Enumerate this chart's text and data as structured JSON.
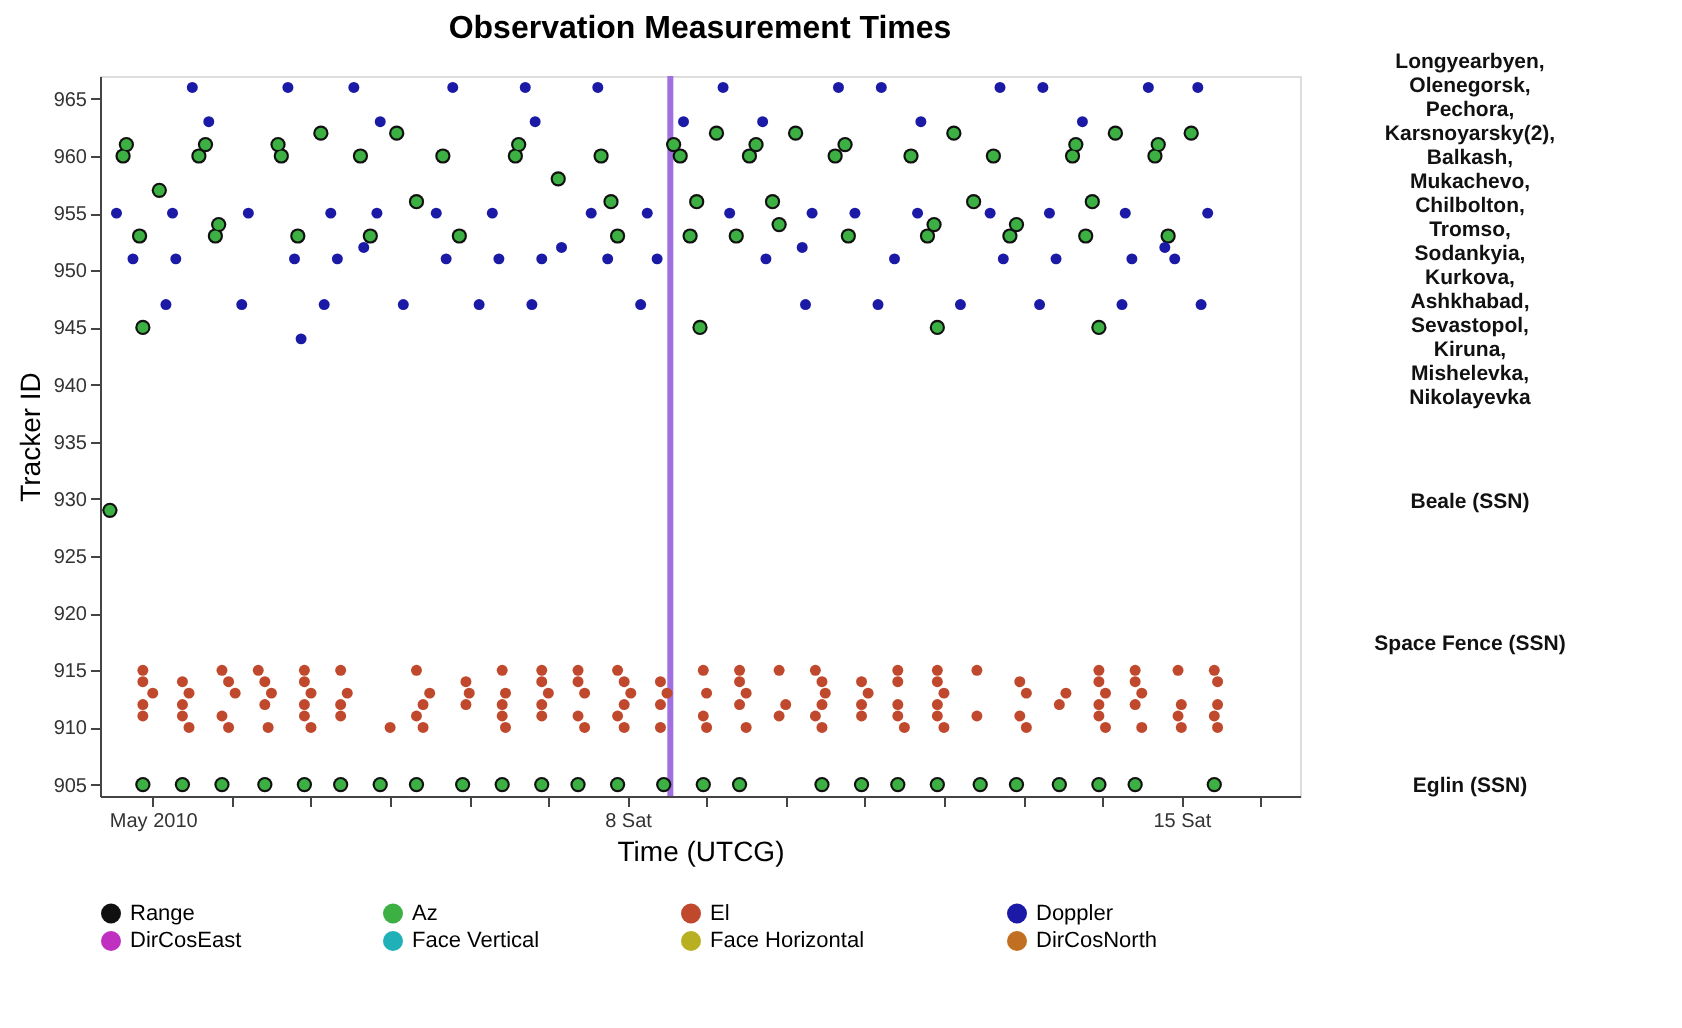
{
  "chart_data": {
    "type": "scatter",
    "title": "Observation Measurement Times",
    "xlabel": "Time (UTCG)",
    "ylabel": "Tracker ID",
    "xlim": [
      "2010-05-01T08:00",
      "2010-05-16T12:00"
    ],
    "xticks": [
      {
        "value": "2010-05-02",
        "label": "May 2010"
      },
      {
        "value": "2010-05-03",
        "label": null
      },
      {
        "value": "2010-05-04",
        "label": null
      },
      {
        "value": "2010-05-05",
        "label": null
      },
      {
        "value": "2010-05-06",
        "label": null
      },
      {
        "value": "2010-05-07",
        "label": null
      },
      {
        "value": "2010-05-08",
        "label": "8 Sat"
      },
      {
        "value": "2010-05-09",
        "label": null
      },
      {
        "value": "2010-05-10",
        "label": null
      },
      {
        "value": "2010-05-11",
        "label": null
      },
      {
        "value": "2010-05-12",
        "label": null
      },
      {
        "value": "2010-05-13",
        "label": null
      },
      {
        "value": "2010-05-14",
        "label": null
      },
      {
        "value": "2010-05-15",
        "label": "15 Sat"
      },
      {
        "value": "2010-05-16",
        "label": null
      }
    ],
    "ylim": [
      904,
      967
    ],
    "yticks": [
      905,
      910,
      915,
      920,
      925,
      930,
      935,
      940,
      945,
      950,
      955,
      960,
      965
    ],
    "grid": false,
    "legend": "bottom",
    "marker": "circle",
    "ref_lines": [
      {
        "axis": "x",
        "value": "2010-05-08T13:00",
        "color": "#a070e0"
      }
    ],
    "annotations": [
      "Longyearbyen, Olenegorsk, Pechora, Karsnoyarsky(2), Balkash, Mukachevo, Chilbolton, Tromso, Sodankyia, Kurkova, Ashkhabad, Sevastopol, Kiruna, Mishelevka, Nikolayevka",
      "Beale (SSN)",
      "Space Fence (SSN)",
      "Eglin (SSN)"
    ],
    "series": [
      {
        "name": "Range",
        "color": "#101010",
        "x": [
          "2010-05-01T11:00",
          "2010-05-01T15:00",
          "2010-05-01T16:00",
          "2010-05-01T20:00",
          "2010-05-01T21:00",
          "2010-05-02T02:00",
          "2010-05-02T14:00",
          "2010-05-02T16:00",
          "2010-05-02T19:00",
          "2010-05-02T20:00",
          "2010-05-03T14:00",
          "2010-05-03T15:00",
          "2010-05-03T20:00",
          "2010-05-04T03:00",
          "2010-05-04T15:00",
          "2010-05-04T18:00",
          "2010-05-05T02:00",
          "2010-05-05T08:00",
          "2010-05-05T16:00",
          "2010-05-05T21:00",
          "2010-05-06T14:00",
          "2010-05-06T15:00",
          "2010-05-07T03:00",
          "2010-05-07T16:00",
          "2010-05-07T19:00",
          "2010-05-07T21:00",
          "2010-05-08T14:00",
          "2010-05-08T16:00",
          "2010-05-08T21:00",
          "2010-05-08T22:00",
          "2010-05-08T19:00",
          "2010-05-09T03:00",
          "2010-05-09T09:00",
          "2010-05-09T13:00",
          "2010-05-09T15:00",
          "2010-05-09T20:00",
          "2010-05-09T22:00",
          "2010-05-10T03:00",
          "2010-05-10T18:00",
          "2010-05-10T15:00",
          "2010-05-11T14:00",
          "2010-05-12T03:00",
          "2010-05-12T15:00",
          "2010-05-13T16:00",
          "2010-05-13T15:00",
          "2010-05-14T04:00",
          "2010-05-14T17:00",
          "2010-05-14T16:00",
          "2010-05-15T03:00",
          "2010-05-12T09:00",
          "2010-05-13T21:00",
          "2010-05-10T19:00",
          "2010-05-11T21:00",
          "2010-05-11T19:00",
          "2010-05-12T22:00",
          "2010-05-12T20:00",
          "2010-05-13T19:00",
          "2010-05-14T20:00",
          "2010-05-11T22:00",
          "2010-05-13T23:00",
          "2010-05-01T21:00",
          "2010-05-02T09:00",
          "2010-05-02T21:00",
          "2010-05-03T10:00",
          "2010-05-03T22:00",
          "2010-05-04T09:00",
          "2010-05-04T21:00",
          "2010-05-05T08:00",
          "2010-05-05T22:00",
          "2010-05-06T10:00",
          "2010-05-06T22:00",
          "2010-05-07T09:00",
          "2010-05-07T21:00",
          "2010-05-08T11:00",
          "2010-05-08T23:00",
          "2010-05-09T10:00",
          "2010-05-10T11:00",
          "2010-05-10T23:00",
          "2010-05-11T10:00",
          "2010-05-11T22:00",
          "2010-05-12T11:00",
          "2010-05-12T22:00",
          "2010-05-13T11:00",
          "2010-05-13T23:00",
          "2010-05-14T10:00",
          "2010-05-15T10:00"
        ],
        "values": [
          929,
          960,
          961,
          953,
          945,
          957,
          960,
          961,
          953,
          954,
          961,
          960,
          953,
          962,
          960,
          953,
          962,
          956,
          960,
          953,
          960,
          961,
          958,
          960,
          956,
          953,
          961,
          960,
          956,
          945,
          953,
          962,
          953,
          960,
          961,
          956,
          954,
          962,
          961,
          960,
          960,
          962,
          960,
          961,
          960,
          962,
          961,
          960,
          962,
          956,
          956,
          953,
          954,
          953,
          954,
          953,
          953,
          953,
          945,
          945,
          905,
          905,
          905,
          905,
          905,
          905,
          905,
          905,
          905,
          905,
          905,
          905,
          905,
          905,
          905,
          905,
          905,
          905,
          905,
          905,
          905,
          905,
          905,
          905,
          905,
          905
        ]
      },
      {
        "name": "Az",
        "color": "#3cb043",
        "x": [
          "2010-05-01T11:00",
          "2010-05-01T15:00",
          "2010-05-01T16:00",
          "2010-05-01T20:00",
          "2010-05-01T21:00",
          "2010-05-02T02:00",
          "2010-05-02T14:00",
          "2010-05-02T16:00",
          "2010-05-02T19:00",
          "2010-05-02T20:00",
          "2010-05-03T14:00",
          "2010-05-03T15:00",
          "2010-05-03T20:00",
          "2010-05-04T03:00",
          "2010-05-04T15:00",
          "2010-05-04T18:00",
          "2010-05-05T02:00",
          "2010-05-05T08:00",
          "2010-05-05T16:00",
          "2010-05-05T21:00",
          "2010-05-06T14:00",
          "2010-05-06T15:00",
          "2010-05-07T03:00",
          "2010-05-07T16:00",
          "2010-05-07T19:00",
          "2010-05-07T21:00",
          "2010-05-08T14:00",
          "2010-05-08T16:00",
          "2010-05-08T21:00",
          "2010-05-08T22:00",
          "2010-05-08T19:00",
          "2010-05-09T03:00",
          "2010-05-09T09:00",
          "2010-05-09T13:00",
          "2010-05-09T15:00",
          "2010-05-09T20:00",
          "2010-05-09T22:00",
          "2010-05-10T03:00",
          "2010-05-10T18:00",
          "2010-05-10T15:00",
          "2010-05-11T14:00",
          "2010-05-12T03:00",
          "2010-05-12T15:00",
          "2010-05-13T16:00",
          "2010-05-13T15:00",
          "2010-05-14T04:00",
          "2010-05-14T17:00",
          "2010-05-14T16:00",
          "2010-05-15T03:00",
          "2010-05-12T09:00",
          "2010-05-13T21:00",
          "2010-05-10T19:00",
          "2010-05-11T21:00",
          "2010-05-11T19:00",
          "2010-05-12T22:00",
          "2010-05-12T20:00",
          "2010-05-13T19:00",
          "2010-05-14T20:00",
          "2010-05-11T22:00",
          "2010-05-13T23:00",
          "2010-05-01T21:00",
          "2010-05-02T09:00",
          "2010-05-02T21:00",
          "2010-05-03T10:00",
          "2010-05-03T22:00",
          "2010-05-04T09:00",
          "2010-05-04T21:00",
          "2010-05-05T08:00",
          "2010-05-05T22:00",
          "2010-05-06T10:00",
          "2010-05-06T22:00",
          "2010-05-07T09:00",
          "2010-05-07T21:00",
          "2010-05-08T11:00",
          "2010-05-08T23:00",
          "2010-05-09T10:00",
          "2010-05-10T11:00",
          "2010-05-10T23:00",
          "2010-05-11T10:00",
          "2010-05-11T22:00",
          "2010-05-12T11:00",
          "2010-05-12T22:00",
          "2010-05-13T11:00",
          "2010-05-13T23:00",
          "2010-05-14T10:00",
          "2010-05-15T10:00"
        ],
        "values": [
          929,
          960,
          961,
          953,
          945,
          957,
          960,
          961,
          953,
          954,
          961,
          960,
          953,
          962,
          960,
          953,
          962,
          956,
          960,
          953,
          960,
          961,
          958,
          960,
          956,
          953,
          961,
          960,
          956,
          945,
          953,
          962,
          953,
          960,
          961,
          956,
          954,
          962,
          961,
          960,
          960,
          962,
          960,
          961,
          960,
          962,
          961,
          960,
          962,
          956,
          956,
          953,
          954,
          953,
          954,
          953,
          953,
          953,
          945,
          945,
          905,
          905,
          905,
          905,
          905,
          905,
          905,
          905,
          905,
          905,
          905,
          905,
          905,
          905,
          905,
          905,
          905,
          905,
          905,
          905,
          905,
          905,
          905,
          905,
          905,
          905
        ]
      },
      {
        "name": "El",
        "color": "#c0482c",
        "x": [
          "2010-05-01T21:00",
          "2010-05-01T21:00",
          "2010-05-01T21:00",
          "2010-05-01T21:00",
          "2010-05-02T00:00",
          "2010-05-02T09:00",
          "2010-05-02T09:00",
          "2010-05-02T09:00",
          "2010-05-02T11:00",
          "2010-05-02T11:00",
          "2010-05-02T21:00",
          "2010-05-02T21:00",
          "2010-05-02T23:00",
          "2010-05-02T23:00",
          "2010-05-03T01:00",
          "2010-05-03T08:00",
          "2010-05-03T10:00",
          "2010-05-03T10:00",
          "2010-05-03T11:00",
          "2010-05-03T12:00",
          "2010-05-03T22:00",
          "2010-05-03T22:00",
          "2010-05-03T22:00",
          "2010-05-03T22:00",
          "2010-05-04T00:00",
          "2010-05-04T00:00",
          "2010-05-04T09:00",
          "2010-05-04T09:00",
          "2010-05-04T09:00",
          "2010-05-04T11:00",
          "2010-05-05T00:00",
          "2010-05-05T08:00",
          "2010-05-05T08:00",
          "2010-05-05T10:00",
          "2010-05-05T10:00",
          "2010-05-05T12:00",
          "2010-05-05T23:00",
          "2010-05-05T23:00",
          "2010-05-06T00:00",
          "2010-05-06T10:00",
          "2010-05-06T10:00",
          "2010-05-06T10:00",
          "2010-05-06T11:00",
          "2010-05-06T11:00",
          "2010-05-06T22:00",
          "2010-05-06T22:00",
          "2010-05-06T22:00",
          "2010-05-06T22:00",
          "2010-05-07T00:00",
          "2010-05-07T09:00",
          "2010-05-07T09:00",
          "2010-05-07T09:00",
          "2010-05-07T11:00",
          "2010-05-07T11:00",
          "2010-05-07T21:00",
          "2010-05-07T21:00",
          "2010-05-07T23:00",
          "2010-05-07T23:00",
          "2010-05-07T23:00",
          "2010-05-08T01:00",
          "2010-05-08T10:00",
          "2010-05-08T10:00",
          "2010-05-08T10:00",
          "2010-05-08T12:00",
          "2010-05-08T23:00",
          "2010-05-08T23:00",
          "2010-05-09T00:00",
          "2010-05-09T00:00",
          "2010-05-09T10:00",
          "2010-05-09T10:00",
          "2010-05-09T10:00",
          "2010-05-09T12:00",
          "2010-05-09T12:00",
          "2010-05-09T22:00",
          "2010-05-09T22:00",
          "2010-05-10T00:00",
          "2010-05-10T09:00",
          "2010-05-10T09:00",
          "2010-05-10T11:00",
          "2010-05-10T11:00",
          "2010-05-10T11:00",
          "2010-05-10T12:00",
          "2010-05-10T23:00",
          "2010-05-10T23:00",
          "2010-05-10T23:00",
          "2010-05-11T01:00",
          "2010-05-11T10:00",
          "2010-05-11T10:00",
          "2010-05-11T10:00",
          "2010-05-11T10:00",
          "2010-05-11T12:00",
          "2010-05-11T22:00",
          "2010-05-11T22:00",
          "2010-05-11T22:00",
          "2010-05-11T22:00",
          "2010-05-12T00:00",
          "2010-05-12T00:00",
          "2010-05-12T10:00",
          "2010-05-12T10:00",
          "2010-05-12T23:00",
          "2010-05-12T23:00",
          "2010-05-13T01:00",
          "2010-05-13T01:00",
          "2010-05-13T11:00",
          "2010-05-13T13:00",
          "2010-05-13T23:00",
          "2010-05-13T23:00",
          "2010-05-13T23:00",
          "2010-05-13T23:00",
          "2010-05-14T01:00",
          "2010-05-14T01:00",
          "2010-05-14T10:00",
          "2010-05-14T10:00",
          "2010-05-14T10:00",
          "2010-05-14T12:00",
          "2010-05-14T12:00",
          "2010-05-14T23:00",
          "2010-05-14T23:00",
          "2010-05-15T00:00",
          "2010-05-15T00:00",
          "2010-05-15T10:00",
          "2010-05-15T10:00",
          "2010-05-15T11:00",
          "2010-05-15T11:00",
          "2010-05-15T11:00"
        ],
        "values": [
          915,
          914,
          912,
          911,
          913,
          914,
          912,
          911,
          913,
          910,
          915,
          911,
          914,
          910,
          913,
          915,
          914,
          912,
          910,
          913,
          915,
          914,
          912,
          911,
          913,
          910,
          915,
          912,
          911,
          913,
          910,
          915,
          911,
          912,
          910,
          913,
          914,
          912,
          913,
          915,
          912,
          911,
          913,
          910,
          915,
          914,
          912,
          911,
          913,
          915,
          914,
          911,
          913,
          910,
          915,
          911,
          914,
          912,
          910,
          913,
          914,
          912,
          910,
          913,
          915,
          911,
          913,
          910,
          915,
          914,
          912,
          913,
          910,
          915,
          911,
          912,
          915,
          911,
          914,
          912,
          910,
          913,
          914,
          912,
          911,
          913,
          915,
          914,
          912,
          911,
          910,
          915,
          914,
          912,
          911,
          913,
          910,
          915,
          911,
          914,
          911,
          913,
          910,
          912,
          913,
          915,
          914,
          912,
          911,
          913,
          910,
          915,
          914,
          912,
          913,
          910,
          915,
          911,
          912,
          910,
          915,
          911,
          914,
          912,
          910
        ]
      },
      {
        "name": "Doppler",
        "color": "#1a1aa6",
        "x": [
          "2010-05-01T13:00",
          "2010-05-02T12:00",
          "2010-05-01T18:00",
          "2010-05-02T04:00",
          "2010-05-02T06:00",
          "2010-05-02T07:00",
          "2010-05-02T17:00",
          "2010-05-03T03:00",
          "2010-05-03T05:00",
          "2010-05-03T17:00",
          "2010-05-03T19:00",
          "2010-05-03T21:00",
          "2010-05-04T04:00",
          "2010-05-04T06:00",
          "2010-05-04T08:00",
          "2010-05-04T13:00",
          "2010-05-04T16:00",
          "2010-05-04T20:00",
          "2010-05-04T21:00",
          "2010-05-05T04:00",
          "2010-05-05T14:00",
          "2010-05-05T17:00",
          "2010-05-05T19:00",
          "2010-05-06T03:00",
          "2010-05-06T07:00",
          "2010-05-06T09:00",
          "2010-05-06T17:00",
          "2010-05-06T19:00",
          "2010-05-06T20:00",
          "2010-05-06T22:00",
          "2010-05-07T04:00",
          "2010-05-07T13:00",
          "2010-05-07T15:00",
          "2010-05-07T18:00",
          "2010-05-08T04:00",
          "2010-05-08T06:00",
          "2010-05-08T09:00",
          "2010-05-08T17:00",
          "2010-05-09T05:00",
          "2010-05-09T07:00",
          "2010-05-09T17:00",
          "2010-05-09T18:00",
          "2010-05-10T16:00",
          "2010-05-11T05:00",
          "2010-05-12T17:00",
          "2010-05-13T06:00",
          "2010-05-14T14:00",
          "2010-05-15T05:00",
          "2010-05-11T17:00",
          "2010-05-13T18:00",
          "2010-05-10T08:00",
          "2010-05-10T21:00",
          "2010-05-11T16:00",
          "2010-05-12T14:00",
          "2010-05-13T08:00",
          "2010-05-14T07:00",
          "2010-05-15T08:00",
          "2010-05-10T05:00",
          "2010-05-14T19:00",
          "2010-05-11T09:00",
          "2010-05-12T18:00",
          "2010-05-13T10:00",
          "2010-05-14T09:00",
          "2010-05-14T22:00",
          "2010-05-10T06:00",
          "2010-05-11T04:00",
          "2010-05-12T05:00",
          "2010-05-13T05:00",
          "2010-05-14T06:00",
          "2010-05-15T06:00"
        ],
        "values": [
          955,
          966,
          951,
          947,
          955,
          951,
          963,
          947,
          955,
          966,
          951,
          944,
          947,
          955,
          951,
          966,
          952,
          955,
          963,
          947,
          955,
          951,
          966,
          947,
          955,
          951,
          966,
          947,
          963,
          951,
          952,
          955,
          966,
          951,
          947,
          955,
          951,
          963,
          966,
          955,
          963,
          951,
          966,
          966,
          966,
          966,
          966,
          966,
          963,
          963,
          955,
          955,
          955,
          955,
          955,
          955,
          955,
          952,
          952,
          951,
          951,
          951,
          951,
          951,
          947,
          947,
          947,
          947,
          947,
          947
        ]
      },
      {
        "name": "DirCosEast",
        "color": "#c030c0"
      },
      {
        "name": "Face Vertical",
        "color": "#20b0b8"
      },
      {
        "name": "Face Horizontal",
        "color": "#b8b020"
      },
      {
        "name": "DirCosNorth",
        "color": "#c07020"
      }
    ]
  }
}
